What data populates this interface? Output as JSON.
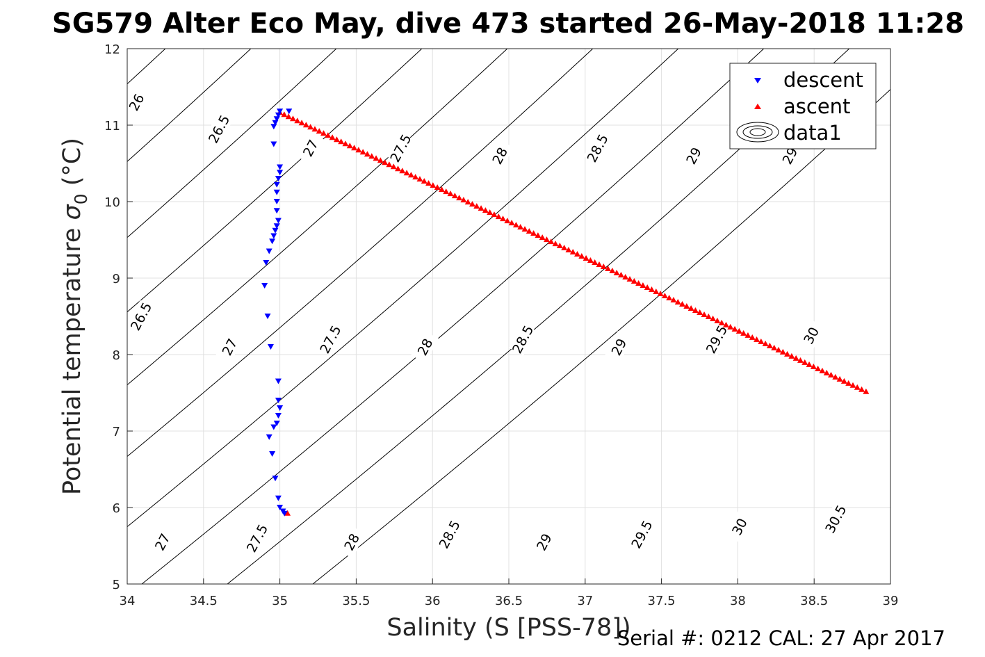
{
  "chart_data": {
    "type": "scatter",
    "title": "SG579 Alter Eco May, dive 473 started 26-May-2018 11:28",
    "xlabel": "Salinity (S [PSS-78])",
    "ylabel_main": "Potential temperature ",
    "ylabel_sigma": "σ",
    "ylabel_sub": "0",
    "ylabel_unit": " (°C)",
    "footer": "Serial #: 0212  CAL: 27 Apr 2017",
    "xlim": [
      34,
      39
    ],
    "ylim": [
      5,
      12
    ],
    "xticks": [
      "34",
      "34.5",
      "35",
      "35.5",
      "36",
      "36.5",
      "37",
      "37.5",
      "38",
      "38.5",
      "39"
    ],
    "yticks": [
      "5",
      "6",
      "7",
      "8",
      "9",
      "10",
      "11",
      "12"
    ],
    "grid": true,
    "legend_position": "top-right",
    "legend": [
      {
        "name": "descent",
        "marker": "triangle-down",
        "color": "#0000ff"
      },
      {
        "name": "ascent",
        "marker": "triangle-up",
        "color": "#ff0000"
      },
      {
        "name": "data1",
        "marker": "contour",
        "color": "#000000"
      }
    ],
    "series": [
      {
        "name": "descent",
        "marker": "triangle-down",
        "color": "#0000ff",
        "points": [
          [
            35.0,
            11.18
          ],
          [
            35.06,
            11.18
          ],
          [
            34.99,
            11.13
          ],
          [
            34.98,
            11.08
          ],
          [
            34.97,
            11.03
          ],
          [
            34.96,
            10.98
          ],
          [
            34.96,
            10.75
          ],
          [
            35.0,
            10.45
          ],
          [
            35.0,
            10.38
          ],
          [
            34.99,
            10.3
          ],
          [
            34.98,
            10.22
          ],
          [
            34.98,
            10.12
          ],
          [
            34.98,
            10.0
          ],
          [
            34.98,
            9.88
          ],
          [
            34.99,
            9.75
          ],
          [
            34.98,
            9.68
          ],
          [
            34.97,
            9.62
          ],
          [
            34.96,
            9.55
          ],
          [
            34.95,
            9.48
          ],
          [
            34.93,
            9.35
          ],
          [
            34.91,
            9.2
          ],
          [
            34.9,
            8.9
          ],
          [
            34.92,
            8.5
          ],
          [
            34.94,
            8.1
          ],
          [
            34.99,
            7.65
          ],
          [
            34.99,
            7.4
          ],
          [
            35.0,
            7.3
          ],
          [
            34.99,
            7.2
          ],
          [
            34.98,
            7.1
          ],
          [
            34.96,
            7.05
          ],
          [
            34.93,
            6.92
          ],
          [
            34.95,
            6.7
          ],
          [
            34.97,
            6.38
          ],
          [
            34.99,
            6.12
          ],
          [
            35.0,
            6.0
          ],
          [
            35.02,
            5.95
          ],
          [
            35.03,
            5.92
          ]
        ]
      },
      {
        "name": "ascent",
        "marker": "triangle-up",
        "color": "#ff0000",
        "start": [
          35.0,
          11.17
        ],
        "end": [
          38.84,
          7.52
        ],
        "count": 135,
        "extra_points": [
          [
            35.05,
            5.93
          ]
        ]
      }
    ],
    "contour_labels": [
      "26",
      "26.5",
      "27",
      "27.5",
      "28",
      "28.5",
      "29",
      "29.5",
      "30",
      "30.5"
    ],
    "contours": [
      {
        "level": "26",
        "top_s": 34.25,
        "label_s": 34.06,
        "label_t": 11.3
      },
      {
        "level": "26.5",
        "top_s": 34.81,
        "label_s": 34.6,
        "label_t": 10.95
      },
      {
        "level": "26.5",
        "top_s": 34.81,
        "label_s": 34.09,
        "label_t": 8.5
      },
      {
        "level": "27",
        "top_s": 35.37,
        "label_s": 35.2,
        "label_t": 10.7
      },
      {
        "level": "27",
        "top_s": 35.37,
        "label_s": 34.67,
        "label_t": 8.1
      },
      {
        "level": "27",
        "top_s": 35.37,
        "label_s": 34.23,
        "label_t": 5.55
      },
      {
        "level": "27.5",
        "top_s": 35.93,
        "label_s": 35.79,
        "label_t": 10.7
      },
      {
        "level": "27.5",
        "top_s": 35.93,
        "label_s": 35.33,
        "label_t": 8.2
      },
      {
        "level": "27.5",
        "top_s": 35.93,
        "label_s": 34.85,
        "label_t": 5.6
      },
      {
        "level": "28",
        "top_s": 36.49,
        "label_s": 36.44,
        "label_t": 10.6
      },
      {
        "level": "28",
        "top_s": 36.49,
        "label_s": 35.95,
        "label_t": 8.1
      },
      {
        "level": "28",
        "top_s": 36.49,
        "label_s": 35.47,
        "label_t": 5.55
      },
      {
        "level": "28.5",
        "top_s": 37.05,
        "label_s": 37.08,
        "label_t": 10.7
      },
      {
        "level": "28.5",
        "top_s": 37.05,
        "label_s": 36.59,
        "label_t": 8.2
      },
      {
        "level": "28.5",
        "top_s": 37.05,
        "label_s": 36.11,
        "label_t": 5.65
      },
      {
        "level": "29",
        "top_s": 37.61,
        "label_s": 37.71,
        "label_t": 10.6
      },
      {
        "level": "29",
        "top_s": 37.61,
        "label_s": 37.22,
        "label_t": 8.1
      },
      {
        "level": "29",
        "top_s": 37.61,
        "label_s": 36.73,
        "label_t": 5.55
      },
      {
        "level": "29",
        "top_s": 37.61,
        "label_s": 38.34,
        "label_t": 10.6
      },
      {
        "level": "29.5",
        "top_s": 38.17,
        "label_s": 37.86,
        "label_t": 8.2
      },
      {
        "level": "29.5",
        "top_s": 38.17,
        "label_s": 37.37,
        "label_t": 5.65
      },
      {
        "level": "30",
        "top_s": 38.73,
        "label_s": 38.48,
        "label_t": 8.25
      },
      {
        "level": "30",
        "top_s": 38.73,
        "label_s": 38.01,
        "label_t": 5.75
      },
      {
        "level": "30.5",
        "top_s": 39.29,
        "label_s": 38.64,
        "label_t": 5.85
      }
    ]
  }
}
